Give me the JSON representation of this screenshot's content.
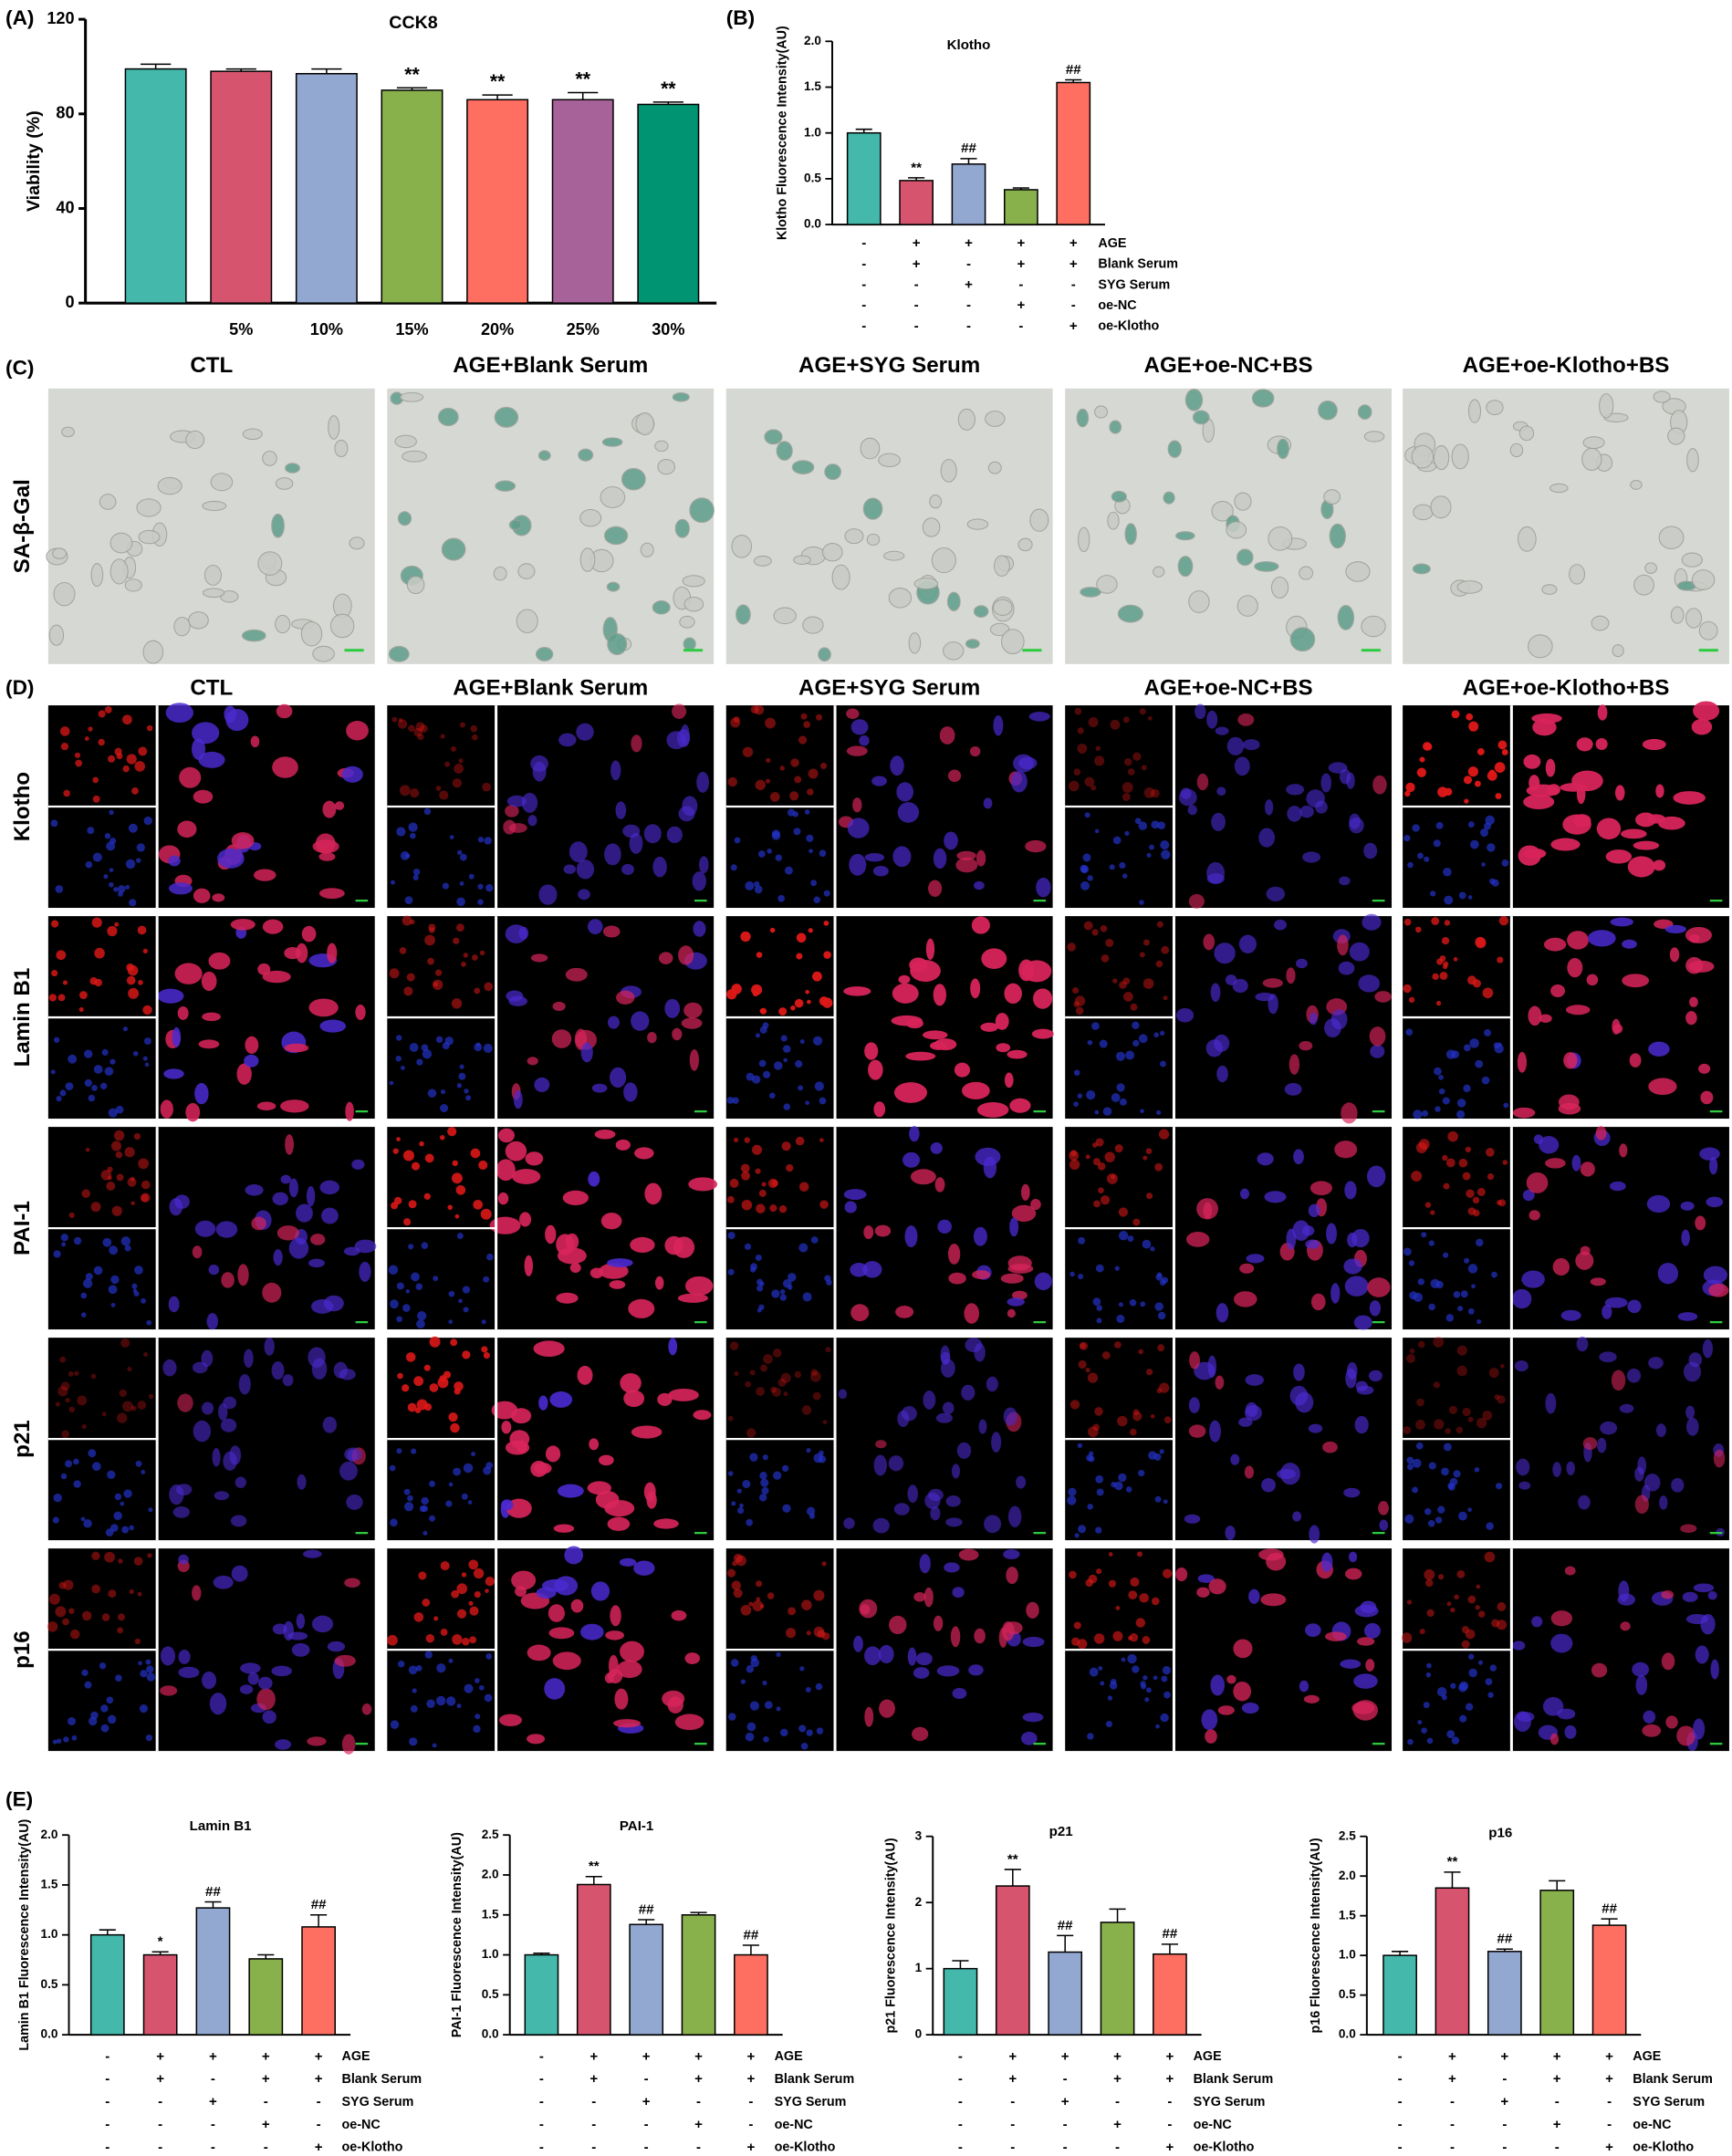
{
  "figure": {
    "panel_labels": [
      "(A)",
      "(B)",
      "(C)",
      "(D)",
      "(E)"
    ],
    "columns": [
      "CTL",
      "AGE+Blank Serum",
      "AGE+SYG Serum",
      "AGE+oe-NC+BS",
      "AGE+oe-Klotho+BS"
    ],
    "c_row_label": "SA-β-Gal",
    "d_row_labels": [
      "Klotho",
      "Lamin B1",
      "PAI-1",
      "p21",
      "p16"
    ]
  },
  "chart_data": [
    {
      "type": "bar",
      "title": "CCK8",
      "ylabel": "Viability (%)",
      "categories": [
        null,
        "5%",
        "10%",
        "15%",
        "20%",
        "25%",
        "30%"
      ],
      "values": [
        99,
        98,
        97,
        90,
        86,
        86,
        84
      ],
      "errors": [
        2,
        1,
        2,
        1,
        2,
        3,
        1
      ],
      "colors": [
        "#45b8ac",
        "#d6546e",
        "#92a8d1",
        "#88b04b",
        "#ff6f61",
        "#a8629a",
        "#009473"
      ],
      "annotations": [
        null,
        null,
        null,
        "**",
        "**",
        "**",
        "**"
      ],
      "ylim": [
        0,
        120
      ],
      "yticks": [
        0,
        40,
        80,
        120
      ]
    },
    {
      "type": "bar",
      "title": "Klotho",
      "ylabel": "Klotho Fluorescence Intensity(AU)",
      "values": [
        1.0,
        0.48,
        0.66,
        0.38,
        1.55
      ],
      "errors": [
        0.04,
        0.03,
        0.06,
        0.02,
        0.03
      ],
      "colors": [
        "#45b8ac",
        "#d6546e",
        "#92a8d1",
        "#88b04b",
        "#ff6f61"
      ],
      "annotations": [
        null,
        "**",
        "##",
        null,
        "##"
      ],
      "ylim": [
        0,
        2
      ],
      "yticks": [
        {
          "value": 0,
          "label": "0.0"
        },
        0.5,
        {
          "value": 1,
          "label": "1.0"
        },
        1.5,
        {
          "value": 2,
          "label": "2.0"
        }
      ],
      "treatments": [
        {
          "name": "AGE",
          "signs": [
            "-",
            "+",
            "+",
            "+",
            "+"
          ]
        },
        {
          "name": "Blank Serum",
          "signs": [
            "-",
            "+",
            "-",
            "+",
            "+"
          ]
        },
        {
          "name": "SYG Serum",
          "signs": [
            "-",
            "-",
            "+",
            "-",
            "-"
          ]
        },
        {
          "name": "oe-NC",
          "signs": [
            "-",
            "-",
            "-",
            "+",
            "-"
          ]
        },
        {
          "name": "oe-Klotho",
          "signs": [
            "-",
            "-",
            "-",
            "-",
            "+"
          ]
        }
      ]
    },
    {
      "type": "bar",
      "title": "Lamin B1",
      "ylabel": "Lamin B1 Fluorescence Intensity(AU)",
      "values": [
        1.0,
        0.8,
        1.27,
        0.76,
        1.08
      ],
      "errors": [
        0.05,
        0.03,
        0.06,
        0.04,
        0.12
      ],
      "colors": [
        "#45b8ac",
        "#d6546e",
        "#92a8d1",
        "#88b04b",
        "#ff6f61"
      ],
      "annotations": [
        null,
        "*",
        "##",
        null,
        "##"
      ],
      "ylim": [
        0,
        2
      ],
      "yticks": [
        {
          "value": 0,
          "label": "0.0"
        },
        0.5,
        {
          "value": 1,
          "label": "1.0"
        },
        1.5,
        {
          "value": 2,
          "label": "2.0"
        }
      ],
      "treatments": [
        {
          "name": "AGE",
          "signs": [
            "-",
            "+",
            "+",
            "+",
            "+"
          ]
        },
        {
          "name": "Blank Serum",
          "signs": [
            "-",
            "+",
            "-",
            "+",
            "+"
          ]
        },
        {
          "name": "SYG Serum",
          "signs": [
            "-",
            "-",
            "+",
            "-",
            "-"
          ]
        },
        {
          "name": "oe-NC",
          "signs": [
            "-",
            "-",
            "-",
            "+",
            "-"
          ]
        },
        {
          "name": "oe-Klotho",
          "signs": [
            "-",
            "-",
            "-",
            "-",
            "+"
          ]
        }
      ]
    },
    {
      "type": "bar",
      "title": "PAI-1",
      "ylabel": "PAI-1 Fluorescence Intensity(AU)",
      "values": [
        1.0,
        1.88,
        1.38,
        1.5,
        1.0
      ],
      "errors": [
        0.02,
        0.1,
        0.06,
        0.03,
        0.12
      ],
      "colors": [
        "#45b8ac",
        "#d6546e",
        "#92a8d1",
        "#88b04b",
        "#ff6f61"
      ],
      "annotations": [
        null,
        "**",
        "##",
        null,
        "##"
      ],
      "ylim": [
        0,
        2.5
      ],
      "yticks": [
        {
          "value": 0,
          "label": "0.0"
        },
        0.5,
        {
          "value": 1,
          "label": "1.0"
        },
        1.5,
        {
          "value": 2,
          "label": "2.0"
        },
        2.5
      ],
      "treatments": [
        {
          "name": "AGE",
          "signs": [
            "-",
            "+",
            "+",
            "+",
            "+"
          ]
        },
        {
          "name": "Blank Serum",
          "signs": [
            "-",
            "+",
            "-",
            "+",
            "+"
          ]
        },
        {
          "name": "SYG Serum",
          "signs": [
            "-",
            "-",
            "+",
            "-",
            "-"
          ]
        },
        {
          "name": "oe-NC",
          "signs": [
            "-",
            "-",
            "-",
            "+",
            "-"
          ]
        },
        {
          "name": "oe-Klotho",
          "signs": [
            "-",
            "-",
            "-",
            "-",
            "+"
          ]
        }
      ]
    },
    {
      "type": "bar",
      "title": "p21",
      "ylabel": "p21 Fluorescence Intensity(AU)",
      "values": [
        1.0,
        2.25,
        1.25,
        1.7,
        1.22
      ],
      "errors": [
        0.12,
        0.25,
        0.25,
        0.2,
        0.15
      ],
      "colors": [
        "#45b8ac",
        "#d6546e",
        "#92a8d1",
        "#88b04b",
        "#ff6f61"
      ],
      "annotations": [
        null,
        "**",
        "##",
        null,
        "##"
      ],
      "ylim": [
        0,
        3
      ],
      "yticks": [
        0,
        1,
        2,
        3
      ],
      "treatments": [
        {
          "name": "AGE",
          "signs": [
            "-",
            "+",
            "+",
            "+",
            "+"
          ]
        },
        {
          "name": "Blank Serum",
          "signs": [
            "-",
            "+",
            "-",
            "+",
            "+"
          ]
        },
        {
          "name": "SYG Serum",
          "signs": [
            "-",
            "-",
            "+",
            "-",
            "-"
          ]
        },
        {
          "name": "oe-NC",
          "signs": [
            "-",
            "-",
            "-",
            "+",
            "-"
          ]
        },
        {
          "name": "oe-Klotho",
          "signs": [
            "-",
            "-",
            "-",
            "-",
            "+"
          ]
        }
      ]
    },
    {
      "type": "bar",
      "title": "p16",
      "ylabel": "p16 Fluorescence Intensity(AU)",
      "values": [
        1.0,
        1.85,
        1.05,
        1.82,
        1.38
      ],
      "errors": [
        0.05,
        0.2,
        0.03,
        0.12,
        0.08
      ],
      "colors": [
        "#45b8ac",
        "#d6546e",
        "#92a8d1",
        "#88b04b",
        "#ff6f61"
      ],
      "annotations": [
        null,
        "**",
        "##",
        null,
        "##"
      ],
      "ylim": [
        0,
        2.5
      ],
      "yticks": [
        {
          "value": 0,
          "label": "0.0"
        },
        0.5,
        {
          "value": 1,
          "label": "1.0"
        },
        1.5,
        {
          "value": 2,
          "label": "2.0"
        },
        2.5
      ],
      "treatments": [
        {
          "name": "AGE",
          "signs": [
            "-",
            "+",
            "+",
            "+",
            "+"
          ]
        },
        {
          "name": "Blank Serum",
          "signs": [
            "-",
            "+",
            "-",
            "+",
            "+"
          ]
        },
        {
          "name": "SYG Serum",
          "signs": [
            "-",
            "-",
            "+",
            "-",
            "-"
          ]
        },
        {
          "name": "oe-NC",
          "signs": [
            "-",
            "-",
            "-",
            "+",
            "-"
          ]
        },
        {
          "name": "oe-Klotho",
          "signs": [
            "-",
            "-",
            "-",
            "-",
            "+"
          ]
        }
      ]
    }
  ]
}
